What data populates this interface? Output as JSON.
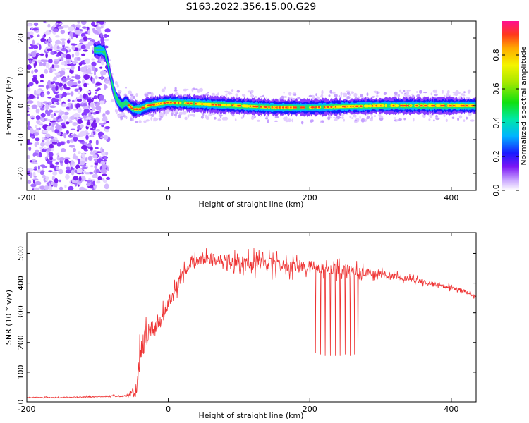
{
  "figure": {
    "title": "S163.2022.356.15.00.G29"
  },
  "chart_data": [
    {
      "type": "heatmap",
      "title": "",
      "xlabel": "Height of straight line (km)",
      "ylabel": "Frequency (Hz)",
      "xlim": [
        -200,
        435
      ],
      "ylim": [
        -25,
        25
      ],
      "xticks": [
        -200,
        0,
        200,
        400
      ],
      "yticks": [
        -20,
        -10,
        0,
        10,
        20
      ],
      "colorbar": {
        "label": "Normalized spectral amplitude",
        "range": [
          0,
          1
        ],
        "ticks": [
          0.0,
          0.2,
          0.4,
          0.6,
          0.8
        ],
        "colormap": "rainbow"
      },
      "ridge": {
        "description": "peak frequency trace",
        "x": [
          -105,
          -95,
          -90,
          -85,
          -80,
          -75,
          -70,
          -65,
          -60,
          -50,
          -40,
          -30,
          0,
          50,
          100,
          150,
          200,
          300,
          435
        ],
        "y": [
          16.5,
          16.5,
          16,
          12,
          7,
          3,
          1,
          0,
          1,
          -1,
          -1,
          0,
          1,
          0.5,
          0,
          -0.5,
          -0.5,
          0,
          0
        ]
      },
      "noise_region": {
        "x": [
          -200,
          -85
        ],
        "y": [
          -25,
          25
        ]
      }
    },
    {
      "type": "line",
      "title": "",
      "xlabel": "Height of straight line (km)",
      "ylabel": "SNR (10 * v/v)",
      "xlim": [
        -200,
        435
      ],
      "ylim": [
        0,
        570
      ],
      "xticks": [
        -200,
        0,
        200,
        400
      ],
      "yticks": [
        0,
        100,
        200,
        300,
        400,
        500
      ],
      "series": [
        {
          "color": "#ee3333",
          "x": [
            -200,
            -150,
            -100,
            -60,
            -45,
            -40,
            -35,
            -30,
            -20,
            -10,
            0,
            10,
            20,
            30,
            50,
            80,
            100,
            130,
            150,
            200,
            250,
            300,
            350,
            400,
            435
          ],
          "y": [
            15,
            15,
            18,
            20,
            35,
            150,
            200,
            220,
            250,
            280,
            330,
            380,
            430,
            465,
            480,
            480,
            470,
            465,
            460,
            455,
            445,
            430,
            410,
            385,
            360
          ],
          "noise_amplitude": [
            3,
            3,
            4,
            6,
            60,
            90,
            90,
            80,
            70,
            60,
            50,
            45,
            40,
            40,
            40,
            50,
            60,
            60,
            50,
            45,
            40,
            25,
            20,
            15,
            15
          ],
          "dropouts_x": [
            208,
            215,
            222,
            229,
            236,
            243,
            250,
            257,
            263,
            268
          ],
          "dropouts_y": [
            165,
            160,
            155,
            155,
            155,
            155,
            160,
            155,
            160,
            160
          ]
        }
      ]
    }
  ]
}
